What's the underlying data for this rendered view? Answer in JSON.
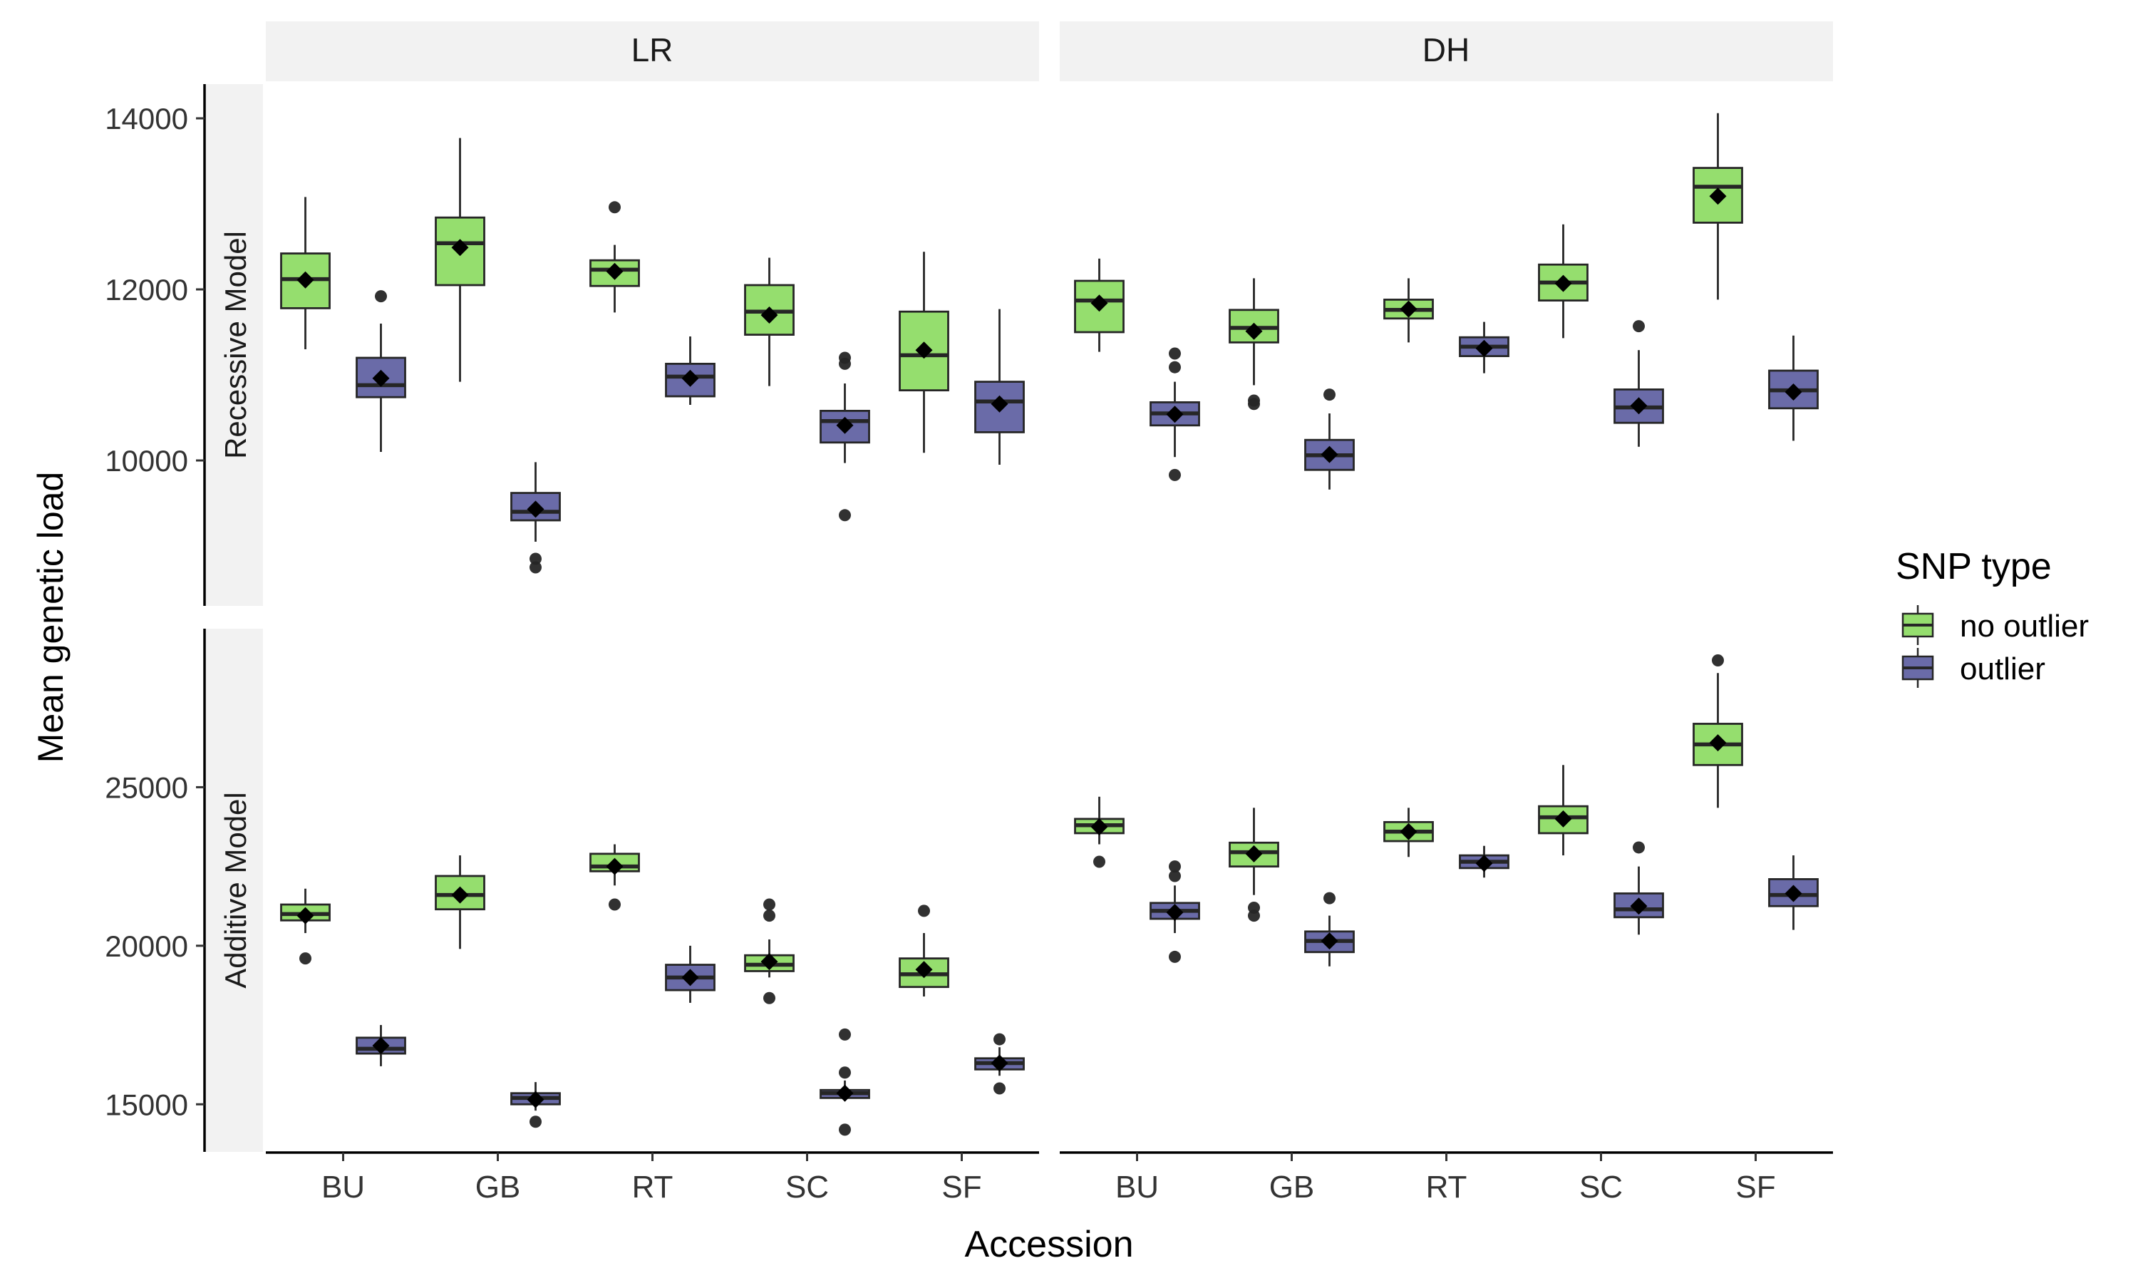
{
  "chart_data": {
    "type": "boxplot",
    "xlabel": "Accession",
    "ylabel": "Mean genetic load",
    "categories": [
      "BU",
      "GB",
      "RT",
      "SC",
      "SF"
    ],
    "facet_columns": [
      "LR",
      "DH"
    ],
    "facet_rows": [
      "Recessive Model",
      "Additive Model"
    ],
    "legend": {
      "title": "SNP type",
      "position": "right",
      "entries": [
        {
          "name": "no outlier",
          "color": "#95DE6E"
        },
        {
          "name": "outlier",
          "color": "#6A6BA8"
        }
      ]
    },
    "row_axes": [
      {
        "ylim": [
          8300,
          14400
        ],
        "ticks": [
          10000,
          12000,
          14000
        ],
        "tick_labels": [
          "10000",
          "12000",
          "14000"
        ]
      },
      {
        "ylim": [
          13500,
          30000
        ],
        "ticks": [
          15000,
          20000,
          25000
        ],
        "tick_labels": [
          "15000",
          "20000",
          "25000"
        ]
      }
    ],
    "panels": [
      {
        "column": "LR",
        "row": "Recessive Model",
        "boxes": [
          {
            "category": "BU",
            "series": "no outlier",
            "low": 11300,
            "q1": 11780,
            "median": 12120,
            "q3": 12420,
            "high": 13080,
            "mean": 12110,
            "outliers": []
          },
          {
            "category": "BU",
            "series": "outlier",
            "low": 10100,
            "q1": 10740,
            "median": 10880,
            "q3": 11200,
            "high": 11600,
            "mean": 10960,
            "outliers": [
              11920
            ]
          },
          {
            "category": "GB",
            "series": "no outlier",
            "low": 10920,
            "q1": 12050,
            "median": 12540,
            "q3": 12840,
            "high": 13770,
            "mean": 12490,
            "outliers": []
          },
          {
            "category": "GB",
            "series": "outlier",
            "low": 9050,
            "q1": 9300,
            "median": 9400,
            "q3": 9620,
            "high": 9980,
            "mean": 9430,
            "outliers": [
              8850,
              8750
            ]
          },
          {
            "category": "RT",
            "series": "no outlier",
            "low": 11730,
            "q1": 12040,
            "median": 12230,
            "q3": 12340,
            "high": 12520,
            "mean": 12210,
            "outliers": [
              12960
            ]
          },
          {
            "category": "RT",
            "series": "outlier",
            "low": 10650,
            "q1": 10750,
            "median": 10980,
            "q3": 11130,
            "high": 11450,
            "mean": 10960,
            "outliers": []
          },
          {
            "category": "SC",
            "series": "no outlier",
            "low": 10870,
            "q1": 11470,
            "median": 11740,
            "q3": 12050,
            "high": 12370,
            "mean": 11700,
            "outliers": []
          },
          {
            "category": "SC",
            "series": "outlier",
            "low": 9970,
            "q1": 10210,
            "median": 10460,
            "q3": 10580,
            "high": 10900,
            "mean": 10410,
            "outliers": [
              11200,
              11130,
              9360
            ]
          },
          {
            "category": "SF",
            "series": "no outlier",
            "low": 10090,
            "q1": 10820,
            "median": 11230,
            "q3": 11740,
            "high": 12440,
            "mean": 11290,
            "outliers": []
          },
          {
            "category": "SF",
            "series": "outlier",
            "low": 9950,
            "q1": 10330,
            "median": 10690,
            "q3": 10920,
            "high": 11770,
            "mean": 10660,
            "outliers": []
          }
        ]
      },
      {
        "column": "DH",
        "row": "Recessive Model",
        "boxes": [
          {
            "category": "BU",
            "series": "no outlier",
            "low": 11270,
            "q1": 11500,
            "median": 11870,
            "q3": 12100,
            "high": 12360,
            "mean": 11840,
            "outliers": []
          },
          {
            "category": "BU",
            "series": "outlier",
            "low": 10040,
            "q1": 10410,
            "median": 10550,
            "q3": 10680,
            "high": 10920,
            "mean": 10540,
            "outliers": [
              11250,
              11090,
              9830
            ]
          },
          {
            "category": "GB",
            "series": "no outlier",
            "low": 10880,
            "q1": 11380,
            "median": 11550,
            "q3": 11760,
            "high": 12130,
            "mean": 11510,
            "outliers": [
              10700,
              10660
            ]
          },
          {
            "category": "GB",
            "series": "outlier",
            "low": 9660,
            "q1": 9890,
            "median": 10060,
            "q3": 10240,
            "high": 10550,
            "mean": 10070,
            "outliers": [
              10770
            ]
          },
          {
            "category": "RT",
            "series": "no outlier",
            "low": 11380,
            "q1": 11660,
            "median": 11760,
            "q3": 11880,
            "high": 12130,
            "mean": 11770,
            "outliers": []
          },
          {
            "category": "RT",
            "series": "outlier",
            "low": 11020,
            "q1": 11220,
            "median": 11330,
            "q3": 11440,
            "high": 11620,
            "mean": 11310,
            "outliers": []
          },
          {
            "category": "SC",
            "series": "no outlier",
            "low": 11430,
            "q1": 11870,
            "median": 12080,
            "q3": 12290,
            "high": 12760,
            "mean": 12070,
            "outliers": []
          },
          {
            "category": "SC",
            "series": "outlier",
            "low": 10160,
            "q1": 10440,
            "median": 10620,
            "q3": 10830,
            "high": 11290,
            "mean": 10640,
            "outliers": [
              11570
            ]
          },
          {
            "category": "SF",
            "series": "no outlier",
            "low": 11880,
            "q1": 12780,
            "median": 13200,
            "q3": 13420,
            "high": 14060,
            "mean": 13090,
            "outliers": []
          },
          {
            "category": "SF",
            "series": "outlier",
            "low": 10230,
            "q1": 10610,
            "median": 10820,
            "q3": 11050,
            "high": 11460,
            "mean": 10800,
            "outliers": []
          }
        ]
      },
      {
        "column": "LR",
        "row": "Additive Model",
        "boxes": [
          {
            "category": "BU",
            "series": "no outlier",
            "low": 20400,
            "q1": 20800,
            "median": 21000,
            "q3": 21300,
            "high": 21800,
            "mean": 20950,
            "outliers": [
              19600
            ]
          },
          {
            "category": "BU",
            "series": "outlier",
            "low": 16200,
            "q1": 16600,
            "median": 16750,
            "q3": 17100,
            "high": 17500,
            "mean": 16850,
            "outliers": []
          },
          {
            "category": "GB",
            "series": "no outlier",
            "low": 19900,
            "q1": 21150,
            "median": 21600,
            "q3": 22200,
            "high": 22850,
            "mean": 21600,
            "outliers": []
          },
          {
            "category": "GB",
            "series": "outlier",
            "low": 14800,
            "q1": 15000,
            "median": 15200,
            "q3": 15350,
            "high": 15700,
            "mean": 15150,
            "outliers": [
              14450
            ]
          },
          {
            "category": "RT",
            "series": "no outlier",
            "low": 21900,
            "q1": 22350,
            "median": 22500,
            "q3": 22900,
            "high": 23200,
            "mean": 22500,
            "outliers": [
              21300
            ]
          },
          {
            "category": "RT",
            "series": "outlier",
            "low": 18200,
            "q1": 18600,
            "median": 19000,
            "q3": 19400,
            "high": 20000,
            "mean": 19000,
            "outliers": []
          },
          {
            "category": "SC",
            "series": "no outlier",
            "low": 19000,
            "q1": 19200,
            "median": 19400,
            "q3": 19700,
            "high": 20200,
            "mean": 19500,
            "outliers": [
              21300,
              20950,
              18350
            ]
          },
          {
            "category": "SC",
            "series": "outlier",
            "low": 15100,
            "q1": 15200,
            "median": 15350,
            "q3": 15450,
            "high": 15750,
            "mean": 15350,
            "outliers": [
              17200,
              16000,
              14200
            ]
          },
          {
            "category": "SF",
            "series": "no outlier",
            "low": 18400,
            "q1": 18700,
            "median": 19100,
            "q3": 19600,
            "high": 20400,
            "mean": 19250,
            "outliers": [
              21100
            ]
          },
          {
            "category": "SF",
            "series": "outlier",
            "low": 15900,
            "q1": 16100,
            "median": 16300,
            "q3": 16450,
            "high": 16800,
            "mean": 16300,
            "outliers": [
              17050,
              15500
            ]
          }
        ]
      },
      {
        "column": "DH",
        "row": "Additive Model",
        "boxes": [
          {
            "category": "BU",
            "series": "no outlier",
            "low": 23200,
            "q1": 23550,
            "median": 23800,
            "q3": 24000,
            "high": 24700,
            "mean": 23750,
            "outliers": [
              22650
            ]
          },
          {
            "category": "BU",
            "series": "outlier",
            "low": 20400,
            "q1": 20850,
            "median": 21100,
            "q3": 21350,
            "high": 21900,
            "mean": 21050,
            "outliers": [
              22500,
              22200,
              19650
            ]
          },
          {
            "category": "GB",
            "series": "no outlier",
            "low": 21600,
            "q1": 22500,
            "median": 22950,
            "q3": 23250,
            "high": 24350,
            "mean": 22900,
            "outliers": [
              21200,
              20950
            ]
          },
          {
            "category": "GB",
            "series": "outlier",
            "low": 19350,
            "q1": 19800,
            "median": 20150,
            "q3": 20450,
            "high": 20950,
            "mean": 20150,
            "outliers": [
              21500
            ]
          },
          {
            "category": "RT",
            "series": "no outlier",
            "low": 22800,
            "q1": 23300,
            "median": 23600,
            "q3": 23900,
            "high": 24350,
            "mean": 23600,
            "outliers": []
          },
          {
            "category": "RT",
            "series": "outlier",
            "low": 22150,
            "q1": 22450,
            "median": 22650,
            "q3": 22850,
            "high": 23150,
            "mean": 22600,
            "outliers": []
          },
          {
            "category": "SC",
            "series": "no outlier",
            "low": 22850,
            "q1": 23550,
            "median": 24050,
            "q3": 24400,
            "high": 25700,
            "mean": 24000,
            "outliers": []
          },
          {
            "category": "SC",
            "series": "outlier",
            "low": 20350,
            "q1": 20900,
            "median": 21150,
            "q3": 21650,
            "high": 22500,
            "mean": 21250,
            "outliers": [
              23100
            ]
          },
          {
            "category": "SF",
            "series": "no outlier",
            "low": 24350,
            "q1": 25700,
            "median": 26350,
            "q3": 27000,
            "high": 28600,
            "mean": 26400,
            "outliers": [
              29000
            ]
          },
          {
            "category": "SF",
            "series": "outlier",
            "low": 20500,
            "q1": 21250,
            "median": 21600,
            "q3": 22100,
            "high": 22850,
            "mean": 21650,
            "outliers": []
          }
        ]
      }
    ]
  }
}
